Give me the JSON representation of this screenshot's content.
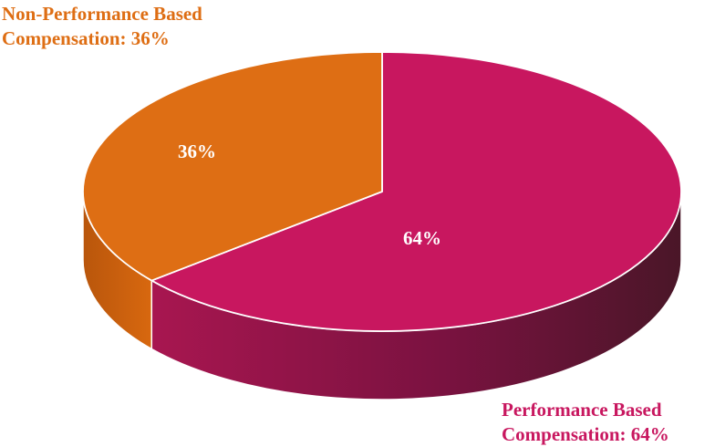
{
  "chart_data": {
    "type": "pie",
    "title": "",
    "slices": [
      {
        "category": "Performance Based Compensation",
        "value": 64,
        "inner_label": "64%",
        "callout_lines": [
          "Performance Based",
          "Compensation: 64%"
        ],
        "color": "#C8175F",
        "side_color": "#7E1240",
        "side_shadow": "#4C1426"
      },
      {
        "category": "Non-Performance Based Compensation",
        "value": 36,
        "inner_label": "36%",
        "callout_lines": [
          "Non-Performance Based",
          "Compensation: 36%"
        ],
        "color": "#DE6E14",
        "side_color": "#C25F0E",
        "side_shadow": "#8E420A"
      }
    ],
    "style": "3d",
    "legend": "none"
  }
}
